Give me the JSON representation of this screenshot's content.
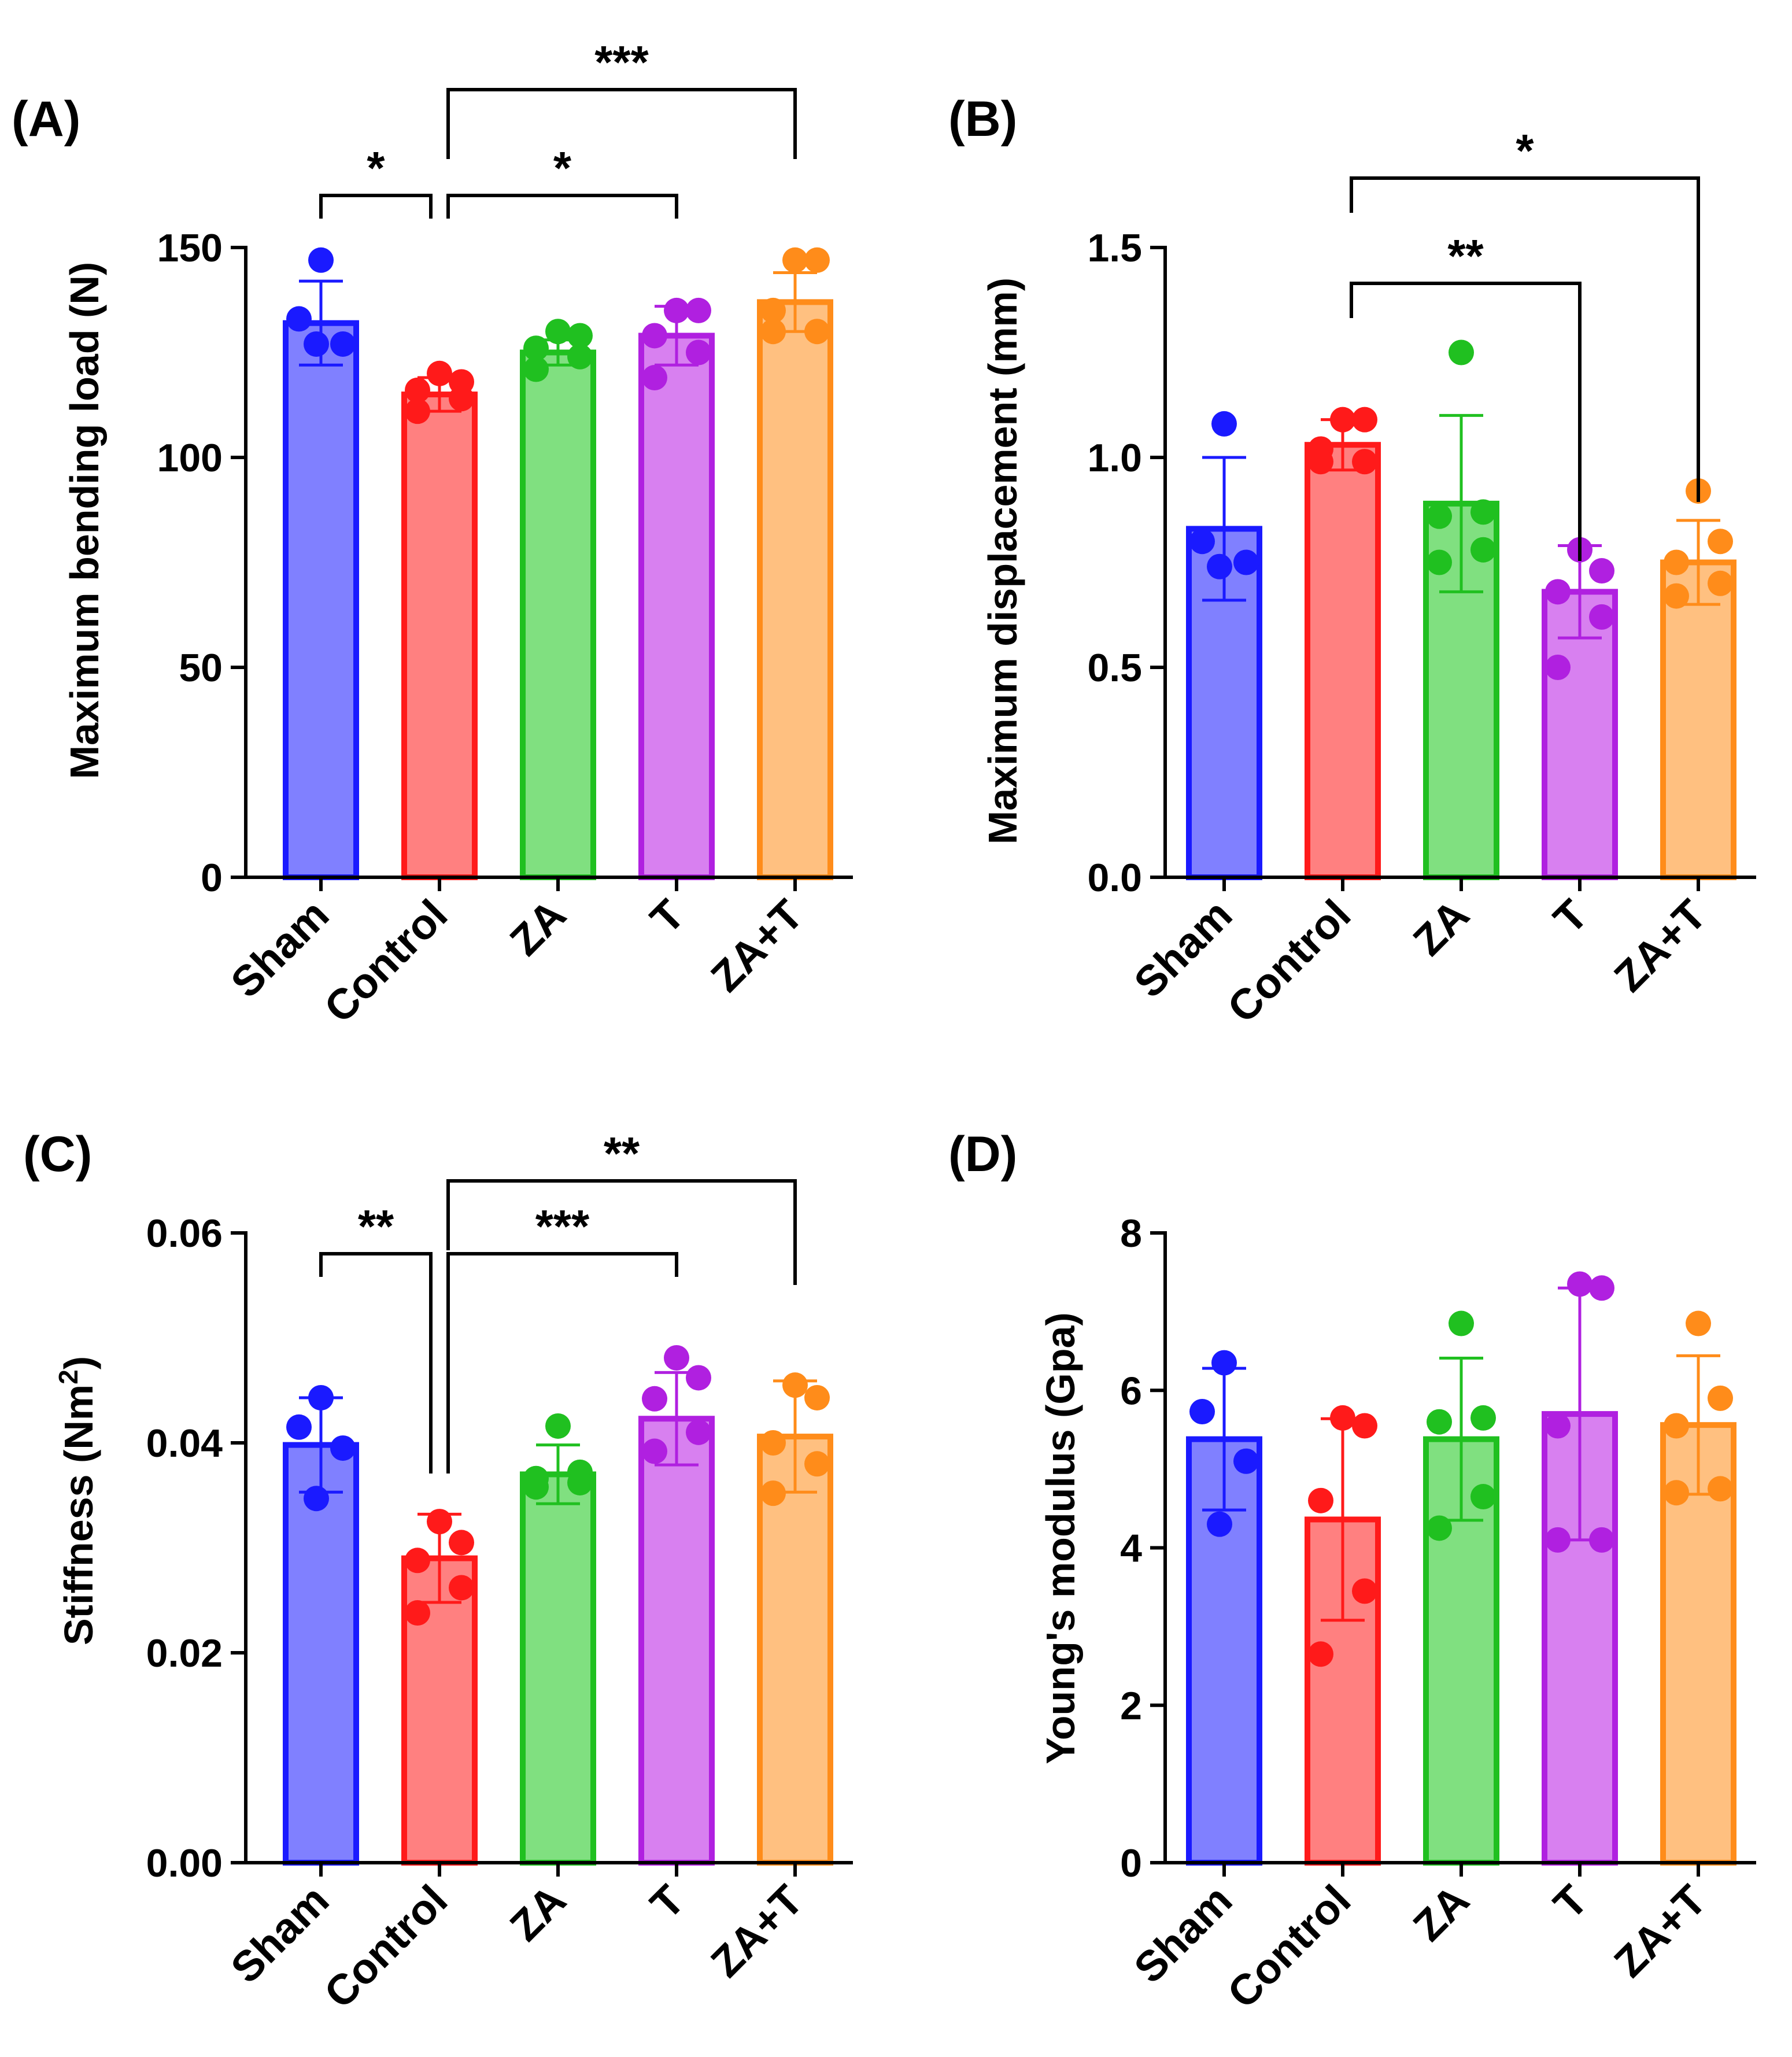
{
  "figure": {
    "panels": [
      "A",
      "B",
      "C",
      "D"
    ]
  },
  "chart_data": [
    {
      "panel": "(A)",
      "type": "bar",
      "categories": [
        "Sham",
        "Control",
        "ZA",
        "T",
        "ZA+T"
      ],
      "colors": {
        "fill": [
          "#8080ff",
          "#ff8080",
          "#80e080",
          "#d880f0",
          "#ffc080"
        ],
        "stroke": [
          "#1a1aff",
          "#ff1a1a",
          "#20c020",
          "#b020e0",
          "#ff8c1a"
        ]
      },
      "ylabel": "Maximum bending load (N)",
      "ylabel_sup": "",
      "ylabel_tail": "",
      "ylim": [
        0,
        150
      ],
      "yticks": [
        0,
        50,
        100,
        150
      ],
      "ytick_labels": [
        "0",
        "50",
        "100",
        "150"
      ],
      "values": [
        132,
        115,
        125,
        129,
        137
      ],
      "errors": [
        10,
        4,
        3,
        7,
        7
      ],
      "points": [
        [
          147,
          133,
          127,
          127
        ],
        [
          120,
          118,
          116,
          114,
          111
        ],
        [
          130,
          129,
          126,
          124,
          121
        ],
        [
          135,
          135,
          129,
          125,
          119
        ],
        [
          147,
          147,
          135,
          130,
          130
        ]
      ],
      "significance": [
        {
          "from": 0,
          "to": 1,
          "label": "*",
          "level": 1,
          "drop_from": 40,
          "drop_to": 40
        },
        {
          "from": 1,
          "to": 3,
          "label": "*",
          "level": 1,
          "drop_from": 40,
          "drop_to": 40
        },
        {
          "from": 1,
          "to": 4,
          "label": "***",
          "level": 2,
          "drop_from": 120,
          "drop_to": 120
        }
      ]
    },
    {
      "panel": "(B)",
      "type": "bar",
      "categories": [
        "Sham",
        "Control",
        "ZA",
        "T",
        "ZA+T"
      ],
      "colors": {
        "fill": [
          "#8080ff",
          "#ff8080",
          "#80e080",
          "#d880f0",
          "#ffc080"
        ],
        "stroke": [
          "#1a1aff",
          "#ff1a1a",
          "#20c020",
          "#b020e0",
          "#ff8c1a"
        ]
      },
      "ylabel": "Maximum displacement  (mm)",
      "ylabel_sup": "",
      "ylabel_tail": "",
      "ylim": [
        0,
        1.5
      ],
      "yticks": [
        0,
        0.5,
        1.0,
        1.5
      ],
      "ytick_labels": [
        "0.0",
        "0.5",
        "1.0",
        "1.5"
      ],
      "values": [
        0.83,
        1.03,
        0.89,
        0.68,
        0.75
      ],
      "errors": [
        0.17,
        0.06,
        0.21,
        0.11,
        0.1
      ],
      "points": [
        [
          1.08,
          0.8,
          0.75,
          0.74
        ],
        [
          1.09,
          1.09,
          1.02,
          0.99,
          0.99
        ],
        [
          1.25,
          0.87,
          0.86,
          0.78,
          0.75
        ],
        [
          0.78,
          0.73,
          0.68,
          0.62,
          0.5
        ],
        [
          0.92,
          0.8,
          0.75,
          0.7,
          0.67
        ]
      ],
      "significance": [
        {
          "from": 1,
          "to": 3,
          "label": "**",
          "level": 1,
          "drop_from": 60,
          "drop_to": 480
        },
        {
          "from": 1,
          "to": 4,
          "label": "*",
          "level": 2,
          "drop_from": 60,
          "drop_to": 560
        }
      ]
    },
    {
      "panel": "(C)",
      "type": "bar",
      "categories": [
        "Sham",
        "Control",
        "ZA",
        "T",
        "ZA+T"
      ],
      "colors": {
        "fill": [
          "#8080ff",
          "#ff8080",
          "#80e080",
          "#d880f0",
          "#ffc080"
        ],
        "stroke": [
          "#1a1aff",
          "#ff1a1a",
          "#20c020",
          "#b020e0",
          "#ff8c1a"
        ]
      },
      "ylabel": "Stiffness (Nm",
      "ylabel_sup": "2",
      "ylabel_tail": ")",
      "ylim": [
        0,
        0.06
      ],
      "yticks": [
        0,
        0.02,
        0.04,
        0.06
      ],
      "ytick_labels": [
        "0.00",
        "0.02",
        "0.04",
        "0.06"
      ],
      "values": [
        0.0398,
        0.029,
        0.037,
        0.0423,
        0.0406
      ],
      "errors": [
        0.0045,
        0.0042,
        0.0028,
        0.0044,
        0.0053
      ],
      "points": [
        [
          0.0443,
          0.0415,
          0.0395,
          0.0347
        ],
        [
          0.0325,
          0.0305,
          0.0288,
          0.0262,
          0.0238
        ],
        [
          0.0416,
          0.0372,
          0.0366,
          0.0362,
          0.0358
        ],
        [
          0.0481,
          0.0462,
          0.0442,
          0.041,
          0.0392
        ],
        [
          0.0455,
          0.0443,
          0.04,
          0.038,
          0.0352
        ]
      ],
      "significance": [
        {
          "from": 0,
          "to": 1,
          "label": "**",
          "level": 1,
          "drop_from": 40,
          "drop_to": 380
        },
        {
          "from": 1,
          "to": 3,
          "label": "***",
          "level": 1,
          "drop_from": 380,
          "drop_to": 40
        },
        {
          "from": 1,
          "to": 4,
          "label": "**",
          "level": 2,
          "drop_from": 120,
          "drop_to": 180
        }
      ]
    },
    {
      "panel": "(D)",
      "type": "bar",
      "categories": [
        "Sham",
        "Control",
        "ZA",
        "T",
        "ZA+T"
      ],
      "colors": {
        "fill": [
          "#8080ff",
          "#ff8080",
          "#80e080",
          "#d880f0",
          "#ffc080"
        ],
        "stroke": [
          "#1a1aff",
          "#ff1a1a",
          "#20c020",
          "#b020e0",
          "#ff8c1a"
        ]
      },
      "ylabel": "Young's modulus (Gpa)",
      "ylabel_sup": "",
      "ylabel_tail": "",
      "ylim": [
        0,
        8
      ],
      "yticks": [
        0,
        2,
        4,
        6,
        8
      ],
      "ytick_labels": [
        "0",
        "2",
        "4",
        "6",
        "8"
      ],
      "values": [
        5.38,
        4.36,
        5.38,
        5.7,
        5.56
      ],
      "errors": [
        0.9,
        1.28,
        1.03,
        1.6,
        0.88
      ],
      "points": [
        [
          6.35,
          5.73,
          5.1,
          4.3
        ],
        [
          5.65,
          5.55,
          4.6,
          3.45,
          2.65
        ],
        [
          6.85,
          5.65,
          5.6,
          4.65,
          4.25
        ],
        [
          7.35,
          7.3,
          5.55,
          4.1,
          4.1
        ],
        [
          6.85,
          5.9,
          5.55,
          4.75,
          4.7
        ]
      ],
      "significance": []
    }
  ]
}
